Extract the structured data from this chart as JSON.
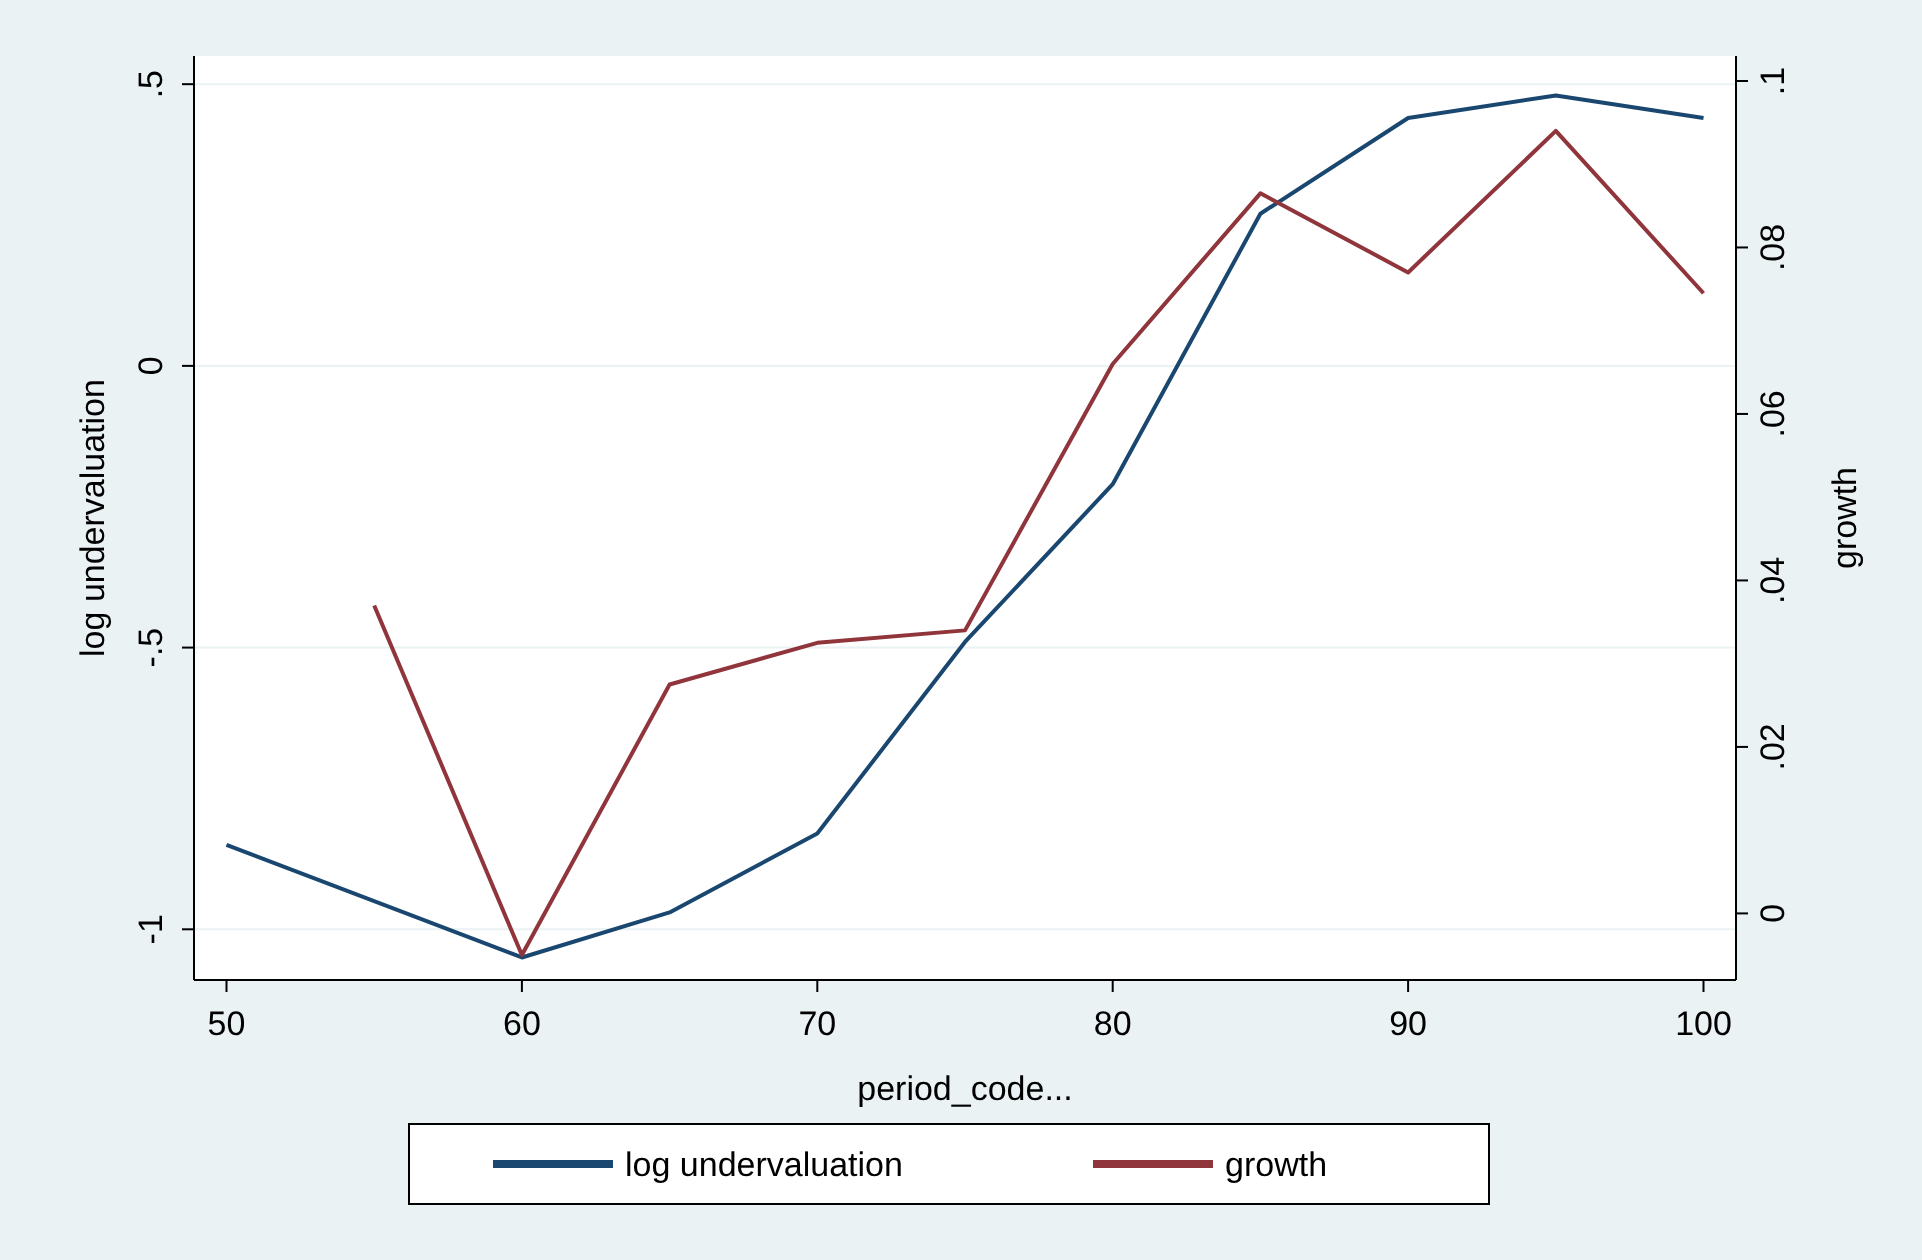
{
  "chart_data": {
    "type": "line",
    "xlabel": "period_code...",
    "ylabel": "log undervaluation",
    "y2label": "growth",
    "xlim": [
      48.9,
      101.1
    ],
    "xticks": [
      50,
      60,
      70,
      80,
      90,
      100
    ],
    "ylim": [
      -1.09,
      0.55
    ],
    "yticks": [
      {
        "value": -1,
        "label": "-1"
      },
      {
        "value": -0.5,
        "label": "-.5"
      },
      {
        "value": 0,
        "label": "0"
      },
      {
        "value": 0.5,
        "label": ".5"
      }
    ],
    "y2lim": [
      -0.008,
      0.103
    ],
    "y2ticks": [
      {
        "value": 0,
        "label": "0"
      },
      {
        "value": 0.02,
        "label": ".02"
      },
      {
        "value": 0.04,
        "label": ".04"
      },
      {
        "value": 0.06,
        "label": ".06"
      },
      {
        "value": 0.08,
        "label": ".08"
      },
      {
        "value": 0.1,
        "label": ".1"
      }
    ],
    "grid": "y",
    "legend": "bottom",
    "marker": "none",
    "line_style": "solid",
    "series": [
      {
        "name": "log undervaluation",
        "color": "#1a476f",
        "x": [
          50,
          60,
          65,
          70,
          75,
          80,
          85,
          90,
          95,
          100
        ],
        "values": [
          -0.85,
          -1.05,
          -0.97,
          -0.83,
          -0.49,
          -0.21,
          0.27,
          0.44,
          0.48,
          0.44
        ]
      },
      {
        "name": "growth",
        "color": "#90353b",
        "axis": "y2",
        "x": [
          55,
          60,
          65,
          70,
          75,
          80,
          85,
          90,
          95,
          100
        ],
        "values": [
          0.037,
          -0.005,
          0.0275,
          0.0325,
          0.034,
          0.066,
          0.0865,
          0.077,
          0.094,
          0.0745
        ]
      }
    ]
  }
}
